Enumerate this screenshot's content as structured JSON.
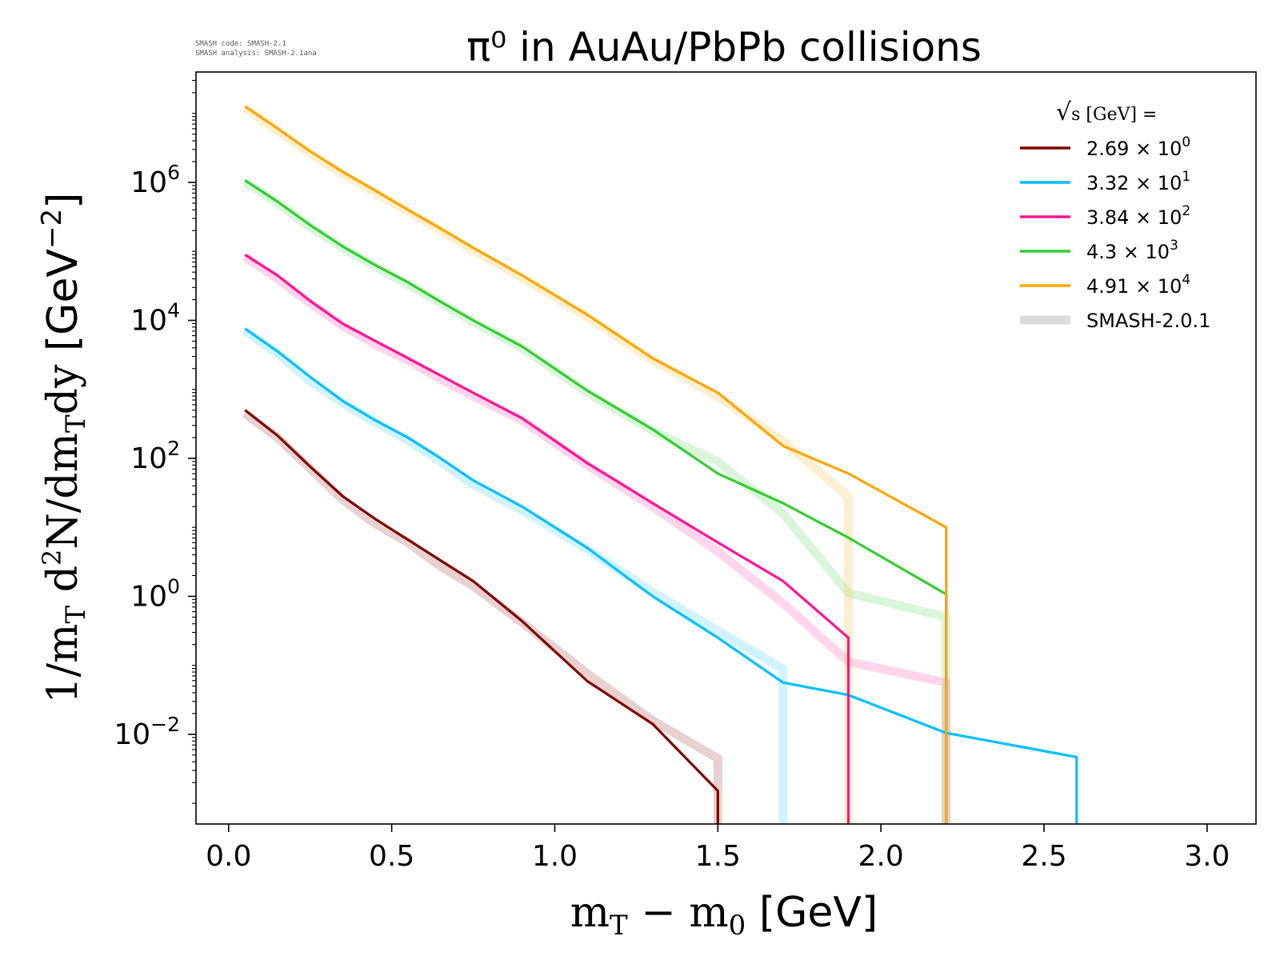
{
  "version_info": {
    "code_line": "SMASH code:      SMASH-2.1",
    "analysis_line": "SMASH analysis: SMASH-2.1ana"
  },
  "chart_data": {
    "type": "line",
    "title": "π⁰ in AuAu/PbPb collisions",
    "xlabel": "m_T − m_0 [GeV]",
    "ylabel": "1/m_T d²N/dm_T dy [GeV⁻²]",
    "xlim": [
      -0.1,
      3.15
    ],
    "ylim_log10": [
      -3.3,
      7.6
    ],
    "yscale": "log",
    "xticks": [
      0.0,
      0.5,
      1.0,
      1.5,
      2.0,
      2.5,
      3.0
    ],
    "xtick_labels": [
      "0.0",
      "0.5",
      "1.0",
      "1.5",
      "2.0",
      "2.5",
      "3.0"
    ],
    "yticks": [
      {
        "exp": -2,
        "base": "10",
        "sup": "−2"
      },
      {
        "exp": 0,
        "base": "10",
        "sup": "0"
      },
      {
        "exp": 2,
        "base": "10",
        "sup": "2"
      },
      {
        "exp": 4,
        "base": "10",
        "sup": "4"
      },
      {
        "exp": 6,
        "base": "10",
        "sup": "6"
      }
    ],
    "legend": {
      "position": "top-right",
      "title_text": "s  [GeV] =",
      "entries": [
        {
          "mantissa": "2.69 × 10",
          "exp": "0",
          "color": "#800000"
        },
        {
          "mantissa": "3.32 × 10",
          "exp": "1",
          "color": "#00bfff"
        },
        {
          "mantissa": "3.84 × 10",
          "exp": "2",
          "color": "#ff1493"
        },
        {
          "mantissa": "4.3 × 10",
          "exp": "3",
          "color": "#32cd32"
        },
        {
          "mantissa": "4.91 × 10",
          "exp": "4",
          "color": "#ffa500"
        },
        {
          "mantissa": "SMASH-2.0.1",
          "exp": "",
          "color": "#dddddd",
          "reference": true
        }
      ]
    },
    "series": [
      {
        "name": "2.69 × 10^0 GeV",
        "color": "#800000",
        "x": [
          0.05,
          0.15,
          0.25,
          0.35,
          0.45,
          0.55,
          0.65,
          0.75,
          0.9,
          1.1,
          1.3,
          1.5,
          1.5
        ],
        "log10y": [
          2.7,
          2.33,
          1.88,
          1.45,
          1.12,
          0.82,
          0.52,
          0.22,
          -0.36,
          -1.23,
          -1.85,
          -2.82,
          -3.3
        ],
        "ref_log10y": [
          2.65,
          2.3,
          1.85,
          1.4,
          1.05,
          0.78,
          0.43,
          0.15,
          -0.38,
          -1.12,
          -1.8,
          -2.35,
          -3.3
        ],
        "ref_x": [
          0.05,
          0.15,
          0.25,
          0.35,
          0.45,
          0.55,
          0.65,
          0.75,
          0.9,
          1.1,
          1.3,
          1.5,
          1.5
        ]
      },
      {
        "name": "3.32 × 10^1 GeV",
        "color": "#00bfff",
        "x": [
          0.05,
          0.15,
          0.25,
          0.35,
          0.45,
          0.55,
          0.65,
          0.75,
          0.9,
          1.1,
          1.3,
          1.5,
          1.7,
          1.9,
          2.2,
          2.6,
          2.6
        ],
        "log10y": [
          3.88,
          3.55,
          3.18,
          2.83,
          2.55,
          2.3,
          2.0,
          1.68,
          1.3,
          0.7,
          0.0,
          -0.6,
          -1.25,
          -1.43,
          -1.98,
          -2.33,
          -3.3
        ],
        "ref_log10y": [
          3.85,
          3.52,
          3.12,
          2.8,
          2.52,
          2.26,
          1.95,
          1.62,
          1.25,
          0.68,
          0.06,
          -0.5,
          -1.05,
          -3.3
        ],
        "ref_x": [
          0.05,
          0.15,
          0.25,
          0.35,
          0.45,
          0.55,
          0.65,
          0.75,
          0.9,
          1.1,
          1.3,
          1.5,
          1.7,
          1.7
        ]
      },
      {
        "name": "3.84 × 10^2 GeV",
        "color": "#ff1493",
        "x": [
          0.05,
          0.15,
          0.25,
          0.35,
          0.45,
          0.55,
          0.65,
          0.75,
          0.9,
          1.1,
          1.3,
          1.5,
          1.7,
          1.9,
          1.9
        ],
        "log10y": [
          4.95,
          4.65,
          4.28,
          3.95,
          3.7,
          3.45,
          3.2,
          2.95,
          2.58,
          1.93,
          1.35,
          0.78,
          0.22,
          -0.6,
          -3.3
        ],
        "ref_log10y": [
          4.92,
          4.6,
          4.25,
          3.92,
          3.65,
          3.42,
          3.15,
          2.9,
          2.55,
          1.9,
          1.3,
          0.65,
          -0.1,
          -0.95,
          -1.25,
          -3.3
        ],
        "ref_x": [
          0.05,
          0.15,
          0.25,
          0.35,
          0.45,
          0.55,
          0.65,
          0.75,
          0.9,
          1.1,
          1.3,
          1.5,
          1.7,
          1.9,
          2.2,
          2.2
        ]
      },
      {
        "name": "4.3 × 10^3 GeV",
        "color": "#32cd32",
        "x": [
          0.05,
          0.15,
          0.25,
          0.35,
          0.45,
          0.55,
          0.65,
          0.75,
          0.9,
          1.1,
          1.3,
          1.5,
          1.7,
          1.9,
          2.2,
          2.2
        ],
        "log10y": [
          6.03,
          5.72,
          5.38,
          5.07,
          4.8,
          4.55,
          4.27,
          4.0,
          3.62,
          2.98,
          2.42,
          1.78,
          1.35,
          0.85,
          0.03,
          -3.3
        ],
        "ref_log10y": [
          6.0,
          5.7,
          5.35,
          5.05,
          4.78,
          4.52,
          4.25,
          3.98,
          3.6,
          2.95,
          2.4,
          1.95,
          1.2,
          0.05,
          -0.3,
          -3.3
        ],
        "ref_x": [
          0.05,
          0.15,
          0.25,
          0.35,
          0.45,
          0.55,
          0.65,
          0.75,
          0.9,
          1.1,
          1.3,
          1.5,
          1.7,
          1.9,
          2.2,
          2.2
        ]
      },
      {
        "name": "4.91 × 10^4 GeV",
        "color": "#ffa500",
        "x": [
          0.05,
          0.15,
          0.25,
          0.35,
          0.45,
          0.55,
          0.65,
          0.75,
          0.9,
          1.1,
          1.3,
          1.5,
          1.7,
          1.9,
          2.2,
          2.2
        ],
        "log10y": [
          7.1,
          6.78,
          6.45,
          6.15,
          5.88,
          5.6,
          5.33,
          5.05,
          4.65,
          4.08,
          3.45,
          2.95,
          2.18,
          1.78,
          1.0,
          -3.3
        ],
        "ref_log10y": [
          7.08,
          6.75,
          6.42,
          6.12,
          5.85,
          5.58,
          5.3,
          5.02,
          4.62,
          4.05,
          3.42,
          2.9,
          2.25,
          1.45,
          -3.3
        ],
        "ref_x": [
          0.05,
          0.15,
          0.25,
          0.35,
          0.45,
          0.55,
          0.65,
          0.75,
          0.9,
          1.1,
          1.3,
          1.5,
          1.7,
          1.9,
          1.9
        ]
      }
    ]
  }
}
